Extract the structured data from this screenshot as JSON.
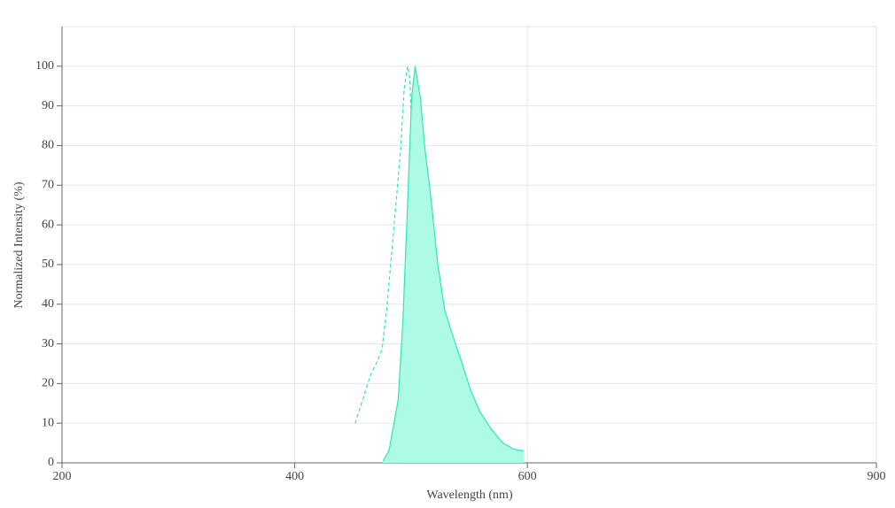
{
  "chart_data": {
    "type": "line",
    "x_label": "Wavelength (nm)",
    "y_label": "Normalized Intensity (%)",
    "xlim": [
      200,
      900
    ],
    "xticks": [
      200,
      400,
      600,
      900
    ],
    "ylim": [
      0,
      110
    ],
    "yticks": [
      0,
      10,
      20,
      30,
      40,
      50,
      60,
      70,
      80,
      90,
      100
    ],
    "grid": true,
    "series": [
      {
        "color": "#2ee8b0",
        "style": "dashed",
        "fill": false,
        "x": [
          452,
          465,
          470,
          475,
          479,
          485,
          491,
          494,
          497,
          499,
          502,
          506,
          510,
          516,
          521,
          528
        ],
        "values": [
          10,
          22,
          25,
          28.5,
          38.5,
          58.5,
          78.6,
          94,
          100,
          97,
          72,
          32,
          14,
          4,
          1,
          0.5
        ]
      },
      {
        "color": "#2ee8b0",
        "style": "solid",
        "fill": true,
        "fill_color": "#adfbe4",
        "x": [
          476,
          481,
          489,
          493,
          497,
          500.5,
          503.5,
          508,
          512,
          517,
          523,
          529,
          536,
          544,
          551,
          559,
          569,
          579,
          588,
          597
        ],
        "values": [
          0.5,
          3,
          16,
          36,
          65,
          92,
          100,
          92,
          79,
          67,
          50,
          38.5,
          32,
          25,
          18.5,
          13,
          8.5,
          5,
          3.5,
          3
        ]
      }
    ]
  }
}
